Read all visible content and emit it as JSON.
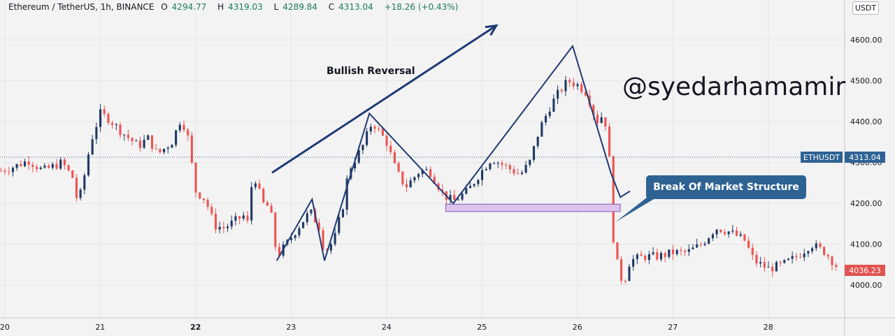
{
  "header": {
    "symbol": "Ethereum / TetherUS, 1h, BINANCE",
    "open_label": "O",
    "open": "4294.77",
    "high_label": "H",
    "high": "4319.03",
    "low_label": "L",
    "low": "4289.84",
    "close_label": "C",
    "close": "4313.04",
    "change": "+18.26 (+0.43%)"
  },
  "currency_label": "USDT",
  "annotations": {
    "bullish_reversal": "Bullish Reversal",
    "handle": "@syedarhamamir",
    "break_of_structure": "Break Of Market Structure"
  },
  "price_labels": {
    "ticker": "ETHUSDT",
    "ticker_price": "4313.04",
    "last_price": "4036.23"
  },
  "colors": {
    "up": "#26a69a",
    "down": "#ef5350",
    "candle_dark": "#1f3a66",
    "drawing": "#1f3a75",
    "callout_bg": "#2e6293",
    "zone_fill": "#dcc3ec",
    "zone_border": "#8e5cb8",
    "ticker_bg": "#2e6293",
    "last_bg": "#e0534f"
  },
  "chart_data": {
    "type": "candlestick",
    "title": "",
    "xlabel": "",
    "ylabel": "",
    "ylim": [
      3920,
      4660
    ],
    "yticks": [
      4000,
      4100,
      4200,
      4300,
      4400,
      4500,
      4600
    ],
    "ytick_labels": [
      "4000.00",
      "4100.00",
      "4200.00",
      "4300.00",
      "4400.00",
      "4500.00",
      "4600.00"
    ],
    "xtick_labels": [
      "20",
      "21",
      "22",
      "23",
      "24",
      "25",
      "26",
      "27",
      "28"
    ],
    "xtick_days": [
      20,
      21,
      22,
      23,
      24,
      25,
      26,
      27,
      28
    ],
    "xlim_days": [
      19.95,
      28.8
    ],
    "grid": true,
    "candle_hours": 1,
    "start_day": 19.96,
    "close_path": [
      [
        19.96,
        4280
      ],
      [
        20.1,
        4290
      ],
      [
        20.25,
        4305
      ],
      [
        20.4,
        4280
      ],
      [
        20.6,
        4300
      ],
      [
        20.72,
        4260
      ],
      [
        20.75,
        4215
      ],
      [
        20.8,
        4225
      ],
      [
        20.9,
        4350
      ],
      [
        21.0,
        4420
      ],
      [
        21.1,
        4405
      ],
      [
        21.2,
        4380
      ],
      [
        21.4,
        4340
      ],
      [
        21.5,
        4360
      ],
      [
        21.6,
        4320
      ],
      [
        21.75,
        4350
      ],
      [
        21.85,
        4410
      ],
      [
        21.92,
        4360
      ],
      [
        22.0,
        4230
      ],
      [
        22.1,
        4210
      ],
      [
        22.2,
        4145
      ],
      [
        22.3,
        4140
      ],
      [
        22.5,
        4170
      ],
      [
        22.55,
        4150
      ],
      [
        22.6,
        4280
      ],
      [
        22.7,
        4200
      ],
      [
        22.78,
        4190
      ],
      [
        22.85,
        4070
      ],
      [
        22.95,
        4100
      ],
      [
        23.1,
        4150
      ],
      [
        23.2,
        4180
      ],
      [
        23.3,
        4140
      ],
      [
        23.35,
        4080
      ],
      [
        23.45,
        4110
      ],
      [
        23.55,
        4200
      ],
      [
        23.6,
        4280
      ],
      [
        23.75,
        4340
      ],
      [
        23.85,
        4400
      ],
      [
        24.0,
        4350
      ],
      [
        24.1,
        4280
      ],
      [
        24.2,
        4240
      ],
      [
        24.35,
        4280
      ],
      [
        24.45,
        4280
      ],
      [
        24.6,
        4220
      ],
      [
        24.7,
        4205
      ],
      [
        24.85,
        4230
      ],
      [
        25.0,
        4280
      ],
      [
        25.1,
        4310
      ],
      [
        25.25,
        4290
      ],
      [
        25.4,
        4270
      ],
      [
        25.5,
        4300
      ],
      [
        25.6,
        4380
      ],
      [
        25.72,
        4440
      ],
      [
        25.8,
        4470
      ],
      [
        25.9,
        4500
      ],
      [
        26.0,
        4490
      ],
      [
        26.1,
        4470
      ],
      [
        26.2,
        4400
      ],
      [
        26.28,
        4420
      ],
      [
        26.33,
        4330
      ],
      [
        26.38,
        4100
      ],
      [
        26.42,
        4050
      ],
      [
        26.48,
        4000
      ],
      [
        26.55,
        4060
      ],
      [
        26.7,
        4070
      ],
      [
        26.85,
        4070
      ],
      [
        27.0,
        4080
      ],
      [
        27.15,
        4080
      ],
      [
        27.3,
        4100
      ],
      [
        27.45,
        4140
      ],
      [
        27.6,
        4130
      ],
      [
        27.75,
        4110
      ],
      [
        27.85,
        4060
      ],
      [
        28.0,
        4040
      ],
      [
        28.15,
        4050
      ],
      [
        28.3,
        4070
      ],
      [
        28.45,
        4100
      ],
      [
        28.6,
        4080
      ],
      [
        28.75,
        4036
      ]
    ],
    "reversal_path": [
      [
        22.85,
        4060
      ],
      [
        23.22,
        4210
      ],
      [
        23.35,
        4060
      ],
      [
        23.82,
        4420
      ],
      [
        24.7,
        4200
      ],
      [
        25.95,
        4585
      ],
      [
        26.35,
        4275
      ],
      [
        26.45,
        4215
      ],
      [
        26.55,
        4230
      ]
    ],
    "trend_arrow": [
      [
        22.8,
        4275
      ],
      [
        25.15,
        4635
      ]
    ],
    "break_zone": {
      "x": [
        24.62,
        26.45
      ],
      "y": [
        4180,
        4198
      ]
    },
    "ticker_line_price": 4313.04
  }
}
